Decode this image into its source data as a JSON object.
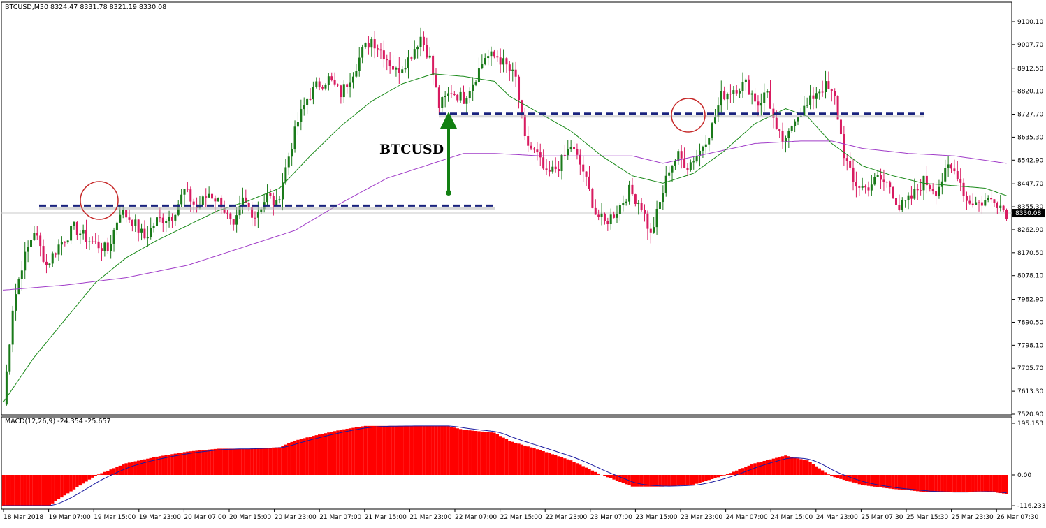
{
  "chart_title": "BTCUSD,M30  8324.47 8331.78 8321.19 8330.08",
  "annotation_label": "BTCUSD",
  "current_price_label": "8330.08",
  "macd_label": "MACD(12,26,9) -24.354 -25.657",
  "colors": {
    "bull_candle": "#1a7a1a",
    "bear_candle": "#d81b60",
    "ma_fast": "#1a8a1a",
    "ma_slow": "#a03cc8",
    "support_resistance": "#1a237e",
    "arrow": "#128012",
    "circle": "#c62828",
    "macd_hist": "#ff0000",
    "macd_signal": "#1a1aa0"
  },
  "chart_data": {
    "type": "candlestick",
    "symbol": "BTCUSD",
    "timeframe": "M30",
    "y_ticks": [
      "9100.10",
      "9007.70",
      "8912.50",
      "8820.10",
      "8727.70",
      "8635.30",
      "8542.90",
      "8447.70",
      "8355.30",
      "8262.90",
      "8170.50",
      "8078.10",
      "7982.90",
      "7890.50",
      "7798.10",
      "7705.70",
      "7613.30",
      "7520.90"
    ],
    "x_ticks": [
      "18 Mar 2018",
      "19 Mar 07:00",
      "19 Mar 15:00",
      "19 Mar 23:00",
      "20 Mar 07:00",
      "20 Mar 15:00",
      "20 Mar 23:00",
      "21 Mar 07:00",
      "21 Mar 15:00",
      "21 Mar 23:00",
      "22 Mar 07:00",
      "22 Mar 15:00",
      "22 Mar 23:00",
      "23 Mar 07:00",
      "23 Mar 15:00",
      "23 Mar 23:00",
      "24 Mar 07:00",
      "24 Mar 15:00",
      "24 Mar 23:00",
      "25 Mar 07:30",
      "25 Mar 15:30",
      "25 Mar 23:30",
      "26 Mar 07:30"
    ],
    "ylim": [
      7520.9,
      9100.1
    ],
    "close_path": [
      [
        0,
        7560
      ],
      [
        3,
        7950
      ],
      [
        6,
        8120
      ],
      [
        10,
        8260
      ],
      [
        14,
        8120
      ],
      [
        18,
        8200
      ],
      [
        23,
        8270
      ],
      [
        28,
        8220
      ],
      [
        34,
        8180
      ],
      [
        38,
        8340
      ],
      [
        42,
        8300
      ],
      [
        46,
        8230
      ],
      [
        50,
        8300
      ],
      [
        55,
        8320
      ],
      [
        59,
        8420
      ],
      [
        63,
        8350
      ],
      [
        67,
        8410
      ],
      [
        71,
        8370
      ],
      [
        75,
        8260
      ],
      [
        78,
        8380
      ],
      [
        82,
        8320
      ],
      [
        86,
        8400
      ],
      [
        89,
        8360
      ],
      [
        93,
        8560
      ],
      [
        96,
        8700
      ],
      [
        99,
        8790
      ],
      [
        102,
        8840
      ],
      [
        106,
        8870
      ],
      [
        110,
        8810
      ],
      [
        114,
        8900
      ],
      [
        117,
        8980
      ],
      [
        120,
        9030
      ],
      [
        124,
        8970
      ],
      [
        128,
        8900
      ],
      [
        132,
        8950
      ],
      [
        136,
        9040
      ],
      [
        139,
        8950
      ],
      [
        142,
        8760
      ],
      [
        146,
        8820
      ],
      [
        150,
        8790
      ],
      [
        154,
        8880
      ],
      [
        157,
        8960
      ],
      [
        161,
        8960
      ],
      [
        164,
        8920
      ],
      [
        167,
        8870
      ],
      [
        170,
        8620
      ],
      [
        174,
        8560
      ],
      [
        177,
        8480
      ],
      [
        181,
        8520
      ],
      [
        185,
        8600
      ],
      [
        189,
        8500
      ],
      [
        193,
        8330
      ],
      [
        196,
        8290
      ],
      [
        200,
        8340
      ],
      [
        204,
        8420
      ],
      [
        208,
        8360
      ],
      [
        211,
        8240
      ],
      [
        214,
        8370
      ],
      [
        217,
        8510
      ],
      [
        220,
        8560
      ],
      [
        223,
        8520
      ],
      [
        227,
        8580
      ],
      [
        231,
        8680
      ],
      [
        234,
        8800
      ],
      [
        238,
        8830
      ],
      [
        242,
        8850
      ],
      [
        246,
        8770
      ],
      [
        249,
        8820
      ],
      [
        252,
        8650
      ],
      [
        255,
        8610
      ],
      [
        258,
        8720
      ],
      [
        262,
        8760
      ],
      [
        265,
        8820
      ],
      [
        268,
        8840
      ],
      [
        271,
        8790
      ],
      [
        274,
        8570
      ],
      [
        277,
        8450
      ],
      [
        281,
        8430
      ],
      [
        285,
        8470
      ],
      [
        289,
        8440
      ],
      [
        292,
        8350
      ],
      [
        296,
        8390
      ],
      [
        300,
        8460
      ],
      [
        304,
        8420
      ],
      [
        308,
        8510
      ],
      [
        311,
        8490
      ],
      [
        314,
        8380
      ],
      [
        318,
        8370
      ],
      [
        323,
        8390
      ],
      [
        327,
        8330
      ]
    ],
    "ma_fast_path": [
      [
        0,
        7570
      ],
      [
        10,
        7750
      ],
      [
        20,
        7900
      ],
      [
        30,
        8050
      ],
      [
        40,
        8150
      ],
      [
        50,
        8220
      ],
      [
        60,
        8280
      ],
      [
        70,
        8340
      ],
      [
        80,
        8380
      ],
      [
        90,
        8430
      ],
      [
        100,
        8560
      ],
      [
        110,
        8680
      ],
      [
        120,
        8780
      ],
      [
        130,
        8850
      ],
      [
        140,
        8890
      ],
      [
        150,
        8880
      ],
      [
        160,
        8860
      ],
      [
        165,
        8800
      ],
      [
        175,
        8730
      ],
      [
        185,
        8660
      ],
      [
        195,
        8560
      ],
      [
        205,
        8480
      ],
      [
        215,
        8450
      ],
      [
        225,
        8490
      ],
      [
        235,
        8580
      ],
      [
        245,
        8690
      ],
      [
        255,
        8750
      ],
      [
        262,
        8720
      ],
      [
        270,
        8610
      ],
      [
        280,
        8520
      ],
      [
        290,
        8480
      ],
      [
        300,
        8450
      ],
      [
        310,
        8440
      ],
      [
        320,
        8430
      ],
      [
        327,
        8400
      ]
    ],
    "ma_slow_path": [
      [
        0,
        8020
      ],
      [
        20,
        8040
      ],
      [
        40,
        8070
      ],
      [
        60,
        8120
      ],
      [
        80,
        8200
      ],
      [
        95,
        8260
      ],
      [
        110,
        8370
      ],
      [
        125,
        8470
      ],
      [
        140,
        8530
      ],
      [
        150,
        8570
      ],
      [
        160,
        8570
      ],
      [
        175,
        8560
      ],
      [
        190,
        8560
      ],
      [
        205,
        8560
      ],
      [
        215,
        8530
      ],
      [
        230,
        8570
      ],
      [
        245,
        8610
      ],
      [
        260,
        8620
      ],
      [
        270,
        8620
      ],
      [
        280,
        8590
      ],
      [
        295,
        8570
      ],
      [
        310,
        8560
      ],
      [
        327,
        8530
      ]
    ],
    "macd_ylim": [
      -116.233,
      195.153
    ],
    "macd_ticks": [
      "195.153",
      "0.00",
      "-116.233"
    ],
    "support_level": 8360,
    "resistance_level": 8730
  }
}
